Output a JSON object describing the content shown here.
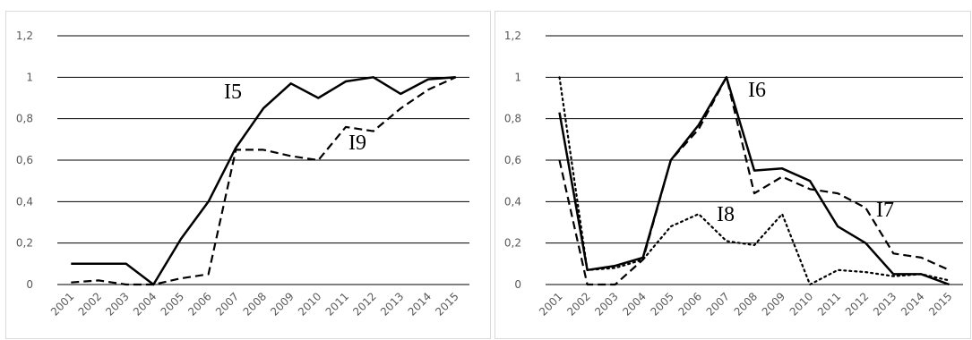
{
  "chart_data": [
    {
      "type": "line",
      "title": "",
      "xlabel": "",
      "ylabel": "",
      "ylim": [
        0,
        1.2
      ],
      "yticks": [
        "0",
        "0,2",
        "0,4",
        "0,6",
        "0,8",
        "1",
        "1,2"
      ],
      "grid": true,
      "x": [
        "2001",
        "2002",
        "2003",
        "2004",
        "2005",
        "2006",
        "2007",
        "2008",
        "2009",
        "2010",
        "2011",
        "2012",
        "2013",
        "2014",
        "2015"
      ],
      "series": [
        {
          "name": "I5",
          "style": "solid",
          "values": [
            0.1,
            0.1,
            0.1,
            0.0,
            0.22,
            0.4,
            0.66,
            0.85,
            0.97,
            0.9,
            0.98,
            1.0,
            0.92,
            0.99,
            1.0
          ]
        },
        {
          "name": "I9",
          "style": "dashed",
          "values": [
            0.01,
            0.02,
            0.0,
            0.0,
            0.03,
            0.05,
            0.65,
            0.65,
            0.62,
            0.6,
            0.76,
            0.74,
            0.85,
            0.94,
            1.0
          ]
        }
      ]
    },
    {
      "type": "line",
      "title": "",
      "xlabel": "",
      "ylabel": "",
      "ylim": [
        0,
        1.2
      ],
      "yticks": [
        "0",
        "0,2",
        "0,4",
        "0,6",
        "0,8",
        "1",
        "1,2"
      ],
      "grid": true,
      "x": [
        "2001",
        "2002",
        "2003",
        "2004",
        "2005",
        "2006",
        "2007",
        "2008",
        "2009",
        "2010",
        "2011",
        "2012",
        "2013",
        "2014",
        "2015"
      ],
      "series": [
        {
          "name": "I6",
          "style": "solid",
          "values": [
            0.83,
            0.07,
            0.09,
            0.13,
            0.6,
            0.77,
            1.0,
            0.55,
            0.56,
            0.5,
            0.28,
            0.2,
            0.05,
            0.05,
            0.0
          ]
        },
        {
          "name": "I7",
          "style": "dashed",
          "values": [
            0.6,
            0.0,
            0.0,
            0.12,
            0.6,
            0.75,
            1.0,
            0.44,
            0.52,
            0.46,
            0.44,
            0.37,
            0.15,
            0.13,
            0.07
          ]
        },
        {
          "name": "I8",
          "style": "dotted",
          "values": [
            1.0,
            0.07,
            0.08,
            0.12,
            0.28,
            0.34,
            0.21,
            0.19,
            0.34,
            0.0,
            0.07,
            0.06,
            0.04,
            0.05,
            0.02
          ]
        }
      ]
    }
  ]
}
